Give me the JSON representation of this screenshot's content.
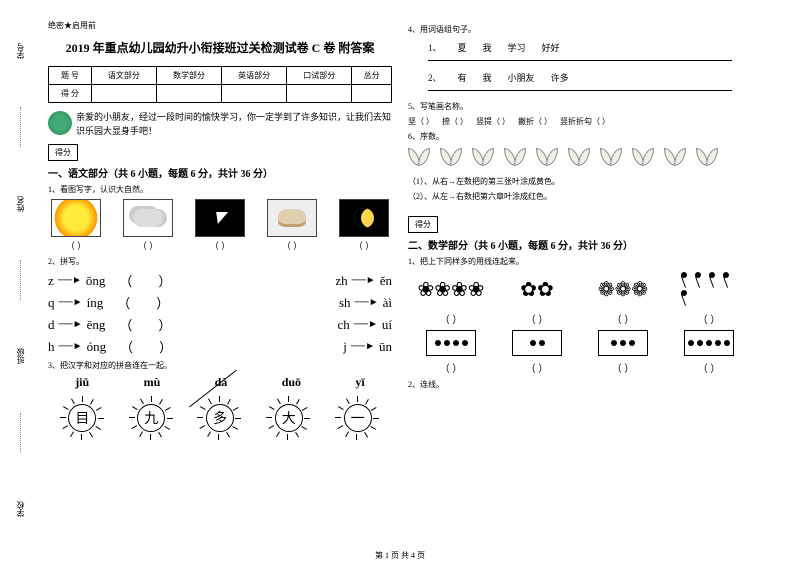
{
  "margin": {
    "labels": [
      "学号",
      "姓名",
      "班级",
      "学校"
    ],
    "marks": [
      "答",
      "准",
      "不",
      "内",
      "线",
      "封",
      "密"
    ]
  },
  "secret": "绝密★启用前",
  "title": "2019 年重点幼儿园幼升小衔接班过关检测试卷 C 卷 附答案",
  "score_table": {
    "headers": [
      "题 号",
      "语文部分",
      "数学部分",
      "英语部分",
      "口试部分",
      "总分"
    ],
    "row2_label": "得 分"
  },
  "intro": "亲爱的小朋友，经过一段时间的愉快学习，你一定学到了许多知识，让我们去知识乐园大显身手吧！",
  "score_label": "得分",
  "sections": {
    "lang": "一、语文部分（共 6 小题，每题 6 分，共计 36 分）",
    "math": "二、数学部分（共 6 小题，每题 6 分，共计 36 分）"
  },
  "q1": "1、看图写字，认识大自然。",
  "paren": "（     ）",
  "q2": "2、拼写。",
  "pinyin": [
    {
      "l1": "z",
      "l2": "ōng",
      "r1": "zh",
      "r2": "ěn"
    },
    {
      "l1": "q",
      "l2": "íng",
      "r1": "sh",
      "r2": "àì"
    },
    {
      "l1": "d",
      "l2": "ēng",
      "r1": "ch",
      "r2": "uí"
    },
    {
      "l1": "h",
      "l2": "óng",
      "r1": "j",
      "r2": "ūn"
    }
  ],
  "q3": "3、把汉字和对应的拼音连在一起。",
  "match_pinyin": [
    "jiǔ",
    "mù",
    "dà",
    "duō",
    "yī"
  ],
  "match_chars": [
    "目",
    "九",
    "多",
    "大",
    "一"
  ],
  "q4": "4、用词语组句子。",
  "sent1": [
    "1、",
    "夏",
    "我",
    "学习",
    "好好"
  ],
  "sent2": [
    "2、",
    "有",
    "我",
    "小朋友",
    "许多"
  ],
  "q5": "5、写笔画名称。",
  "strokes": [
    "坚（   ）",
    "捺（   ）",
    "竖提（   ）",
    "撇折（   ）",
    "竖折折勾（   ）"
  ],
  "q6": "6、序数。",
  "q6_1": "（1）、从右→左数把的第三张叶涂成黄色。",
  "q6_2": "（2）、从左→右数把第六章叶涂成红色。",
  "mq1": "1、把上下同样多的用线连起来。",
  "mq2": "2、连线。",
  "dice_counts": [
    4,
    2,
    3,
    5
  ],
  "footer": "第 1 页 共 4 页"
}
